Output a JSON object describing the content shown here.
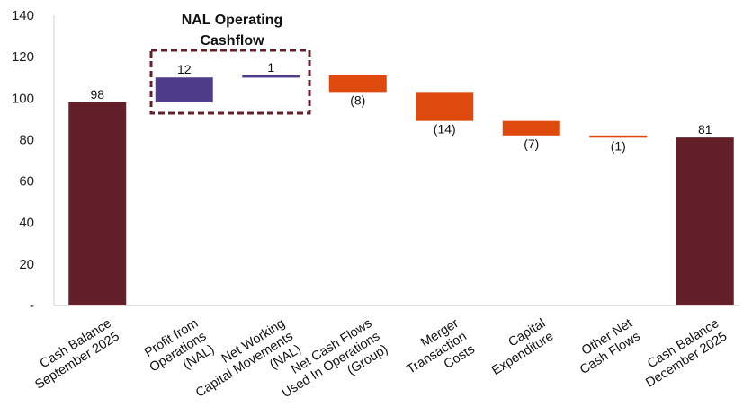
{
  "chart_data": {
    "type": "waterfall",
    "title": "",
    "xlabel": "",
    "ylabel": "",
    "ylim": [
      0,
      140
    ],
    "yticks": [
      0,
      20,
      40,
      60,
      80,
      100,
      120,
      140
    ],
    "ytick_labels": [
      "-",
      "20",
      "40",
      "60",
      "80",
      "100",
      "120",
      "140"
    ],
    "grid": false,
    "group_title": [
      "NAL Operating",
      "Cashflow"
    ],
    "colors": {
      "total": "#64202A",
      "nal": "#4F3C8A",
      "negative": "#DE4A0E",
      "group_box": "#64202A"
    },
    "bars": [
      {
        "category": [
          "Cash Balance",
          "September 2025"
        ],
        "kind": "total",
        "base": 0,
        "value": 98,
        "label": "98"
      },
      {
        "category": [
          "Profit from",
          "Operations",
          "(NAL)"
        ],
        "kind": "nal",
        "base": 98,
        "value": 12,
        "label": "12"
      },
      {
        "category": [
          "Net Working",
          "Capital Movements",
          "(NAL)"
        ],
        "kind": "nal",
        "base": 110,
        "value": 1,
        "label": "1"
      },
      {
        "category": [
          "Net Cash Flows",
          "Used In Operations",
          "(Group)"
        ],
        "kind": "negative",
        "base": 111,
        "value": -8,
        "label": "(8)"
      },
      {
        "category": [
          "Merger",
          "Transaction",
          "Costs"
        ],
        "kind": "negative",
        "base": 103,
        "value": -14,
        "label": "(14)"
      },
      {
        "category": [
          "Capital",
          "Expenditure"
        ],
        "kind": "negative",
        "base": 89,
        "value": -7,
        "label": "(7)"
      },
      {
        "category": [
          "Other Net",
          "Cash Flows"
        ],
        "kind": "negative",
        "base": 82,
        "value": -1,
        "label": "(1)"
      },
      {
        "category": [
          "Cash Balance",
          "December 2025"
        ],
        "kind": "total",
        "base": 0,
        "value": 81,
        "label": "81"
      }
    ]
  }
}
